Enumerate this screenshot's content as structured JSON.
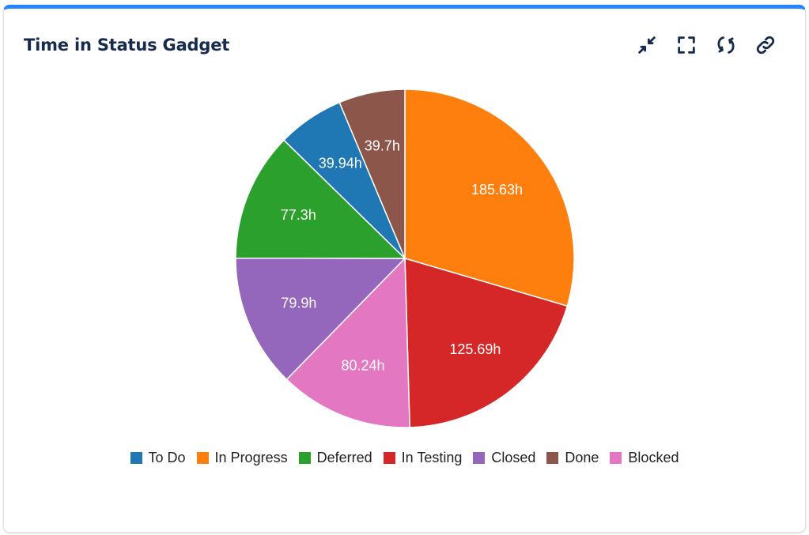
{
  "header": {
    "title": "Time in Status Gadget"
  },
  "toolbar": {
    "icons": [
      "collapse-icon",
      "fullscreen-icon",
      "refresh-icon",
      "link-icon"
    ]
  },
  "chart_data": {
    "type": "pie",
    "title": "",
    "slices": [
      {
        "label": "In Progress",
        "value": 185.63,
        "display": "185.63h",
        "color": "#ff7f0e"
      },
      {
        "label": "In Testing",
        "value": 125.69,
        "display": "125.69h",
        "color": "#d62728"
      },
      {
        "label": "Blocked",
        "value": 80.24,
        "display": "80.24h",
        "color": "#e377c2"
      },
      {
        "label": "Closed",
        "value": 79.9,
        "display": "79.9h",
        "color": "#9467bd"
      },
      {
        "label": "Deferred",
        "value": 77.3,
        "display": "77.3h",
        "color": "#2ca02c"
      },
      {
        "label": "To Do",
        "value": 39.94,
        "display": "39.94h",
        "color": "#1f77b4"
      },
      {
        "label": "Done",
        "value": 39.7,
        "display": "39.7h",
        "color": "#8c564b"
      }
    ],
    "legend": [
      {
        "label": "To Do",
        "color": "#1f77b4"
      },
      {
        "label": "In Progress",
        "color": "#ff7f0e"
      },
      {
        "label": "Deferred",
        "color": "#2ca02c"
      },
      {
        "label": "In Testing",
        "color": "#d62728"
      },
      {
        "label": "Closed",
        "color": "#9467bd"
      },
      {
        "label": "Done",
        "color": "#8c564b"
      },
      {
        "label": "Blocked",
        "color": "#e377c2"
      }
    ],
    "legend_position": "bottom",
    "start_angle": "top, clockwise"
  }
}
